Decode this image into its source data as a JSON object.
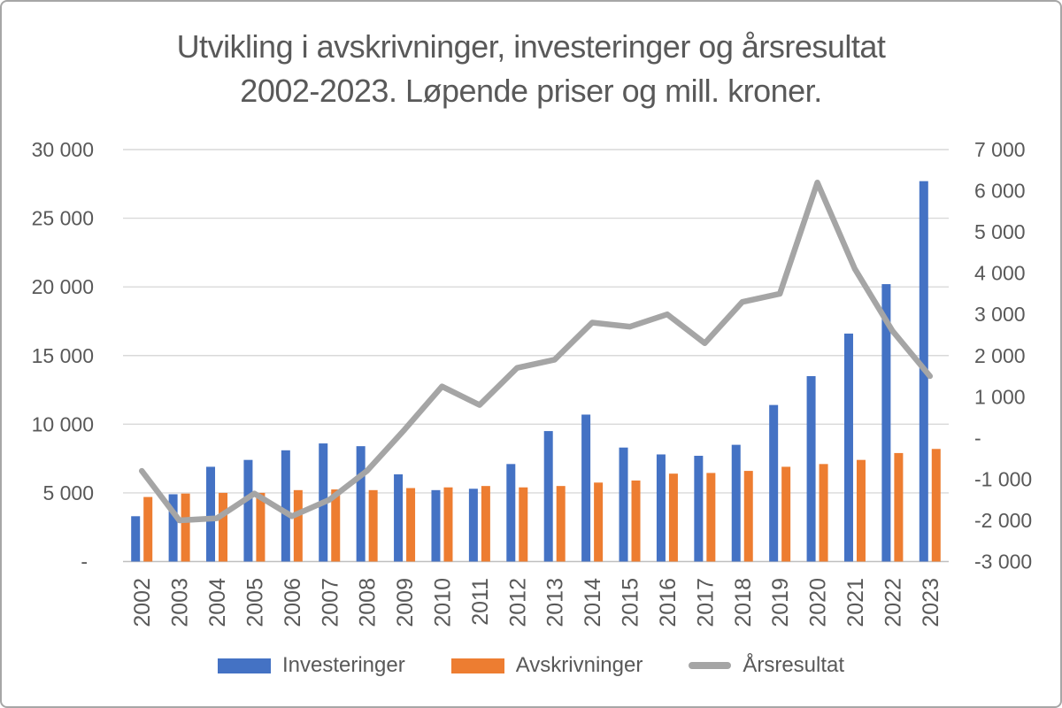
{
  "title_lines": [
    "Utvikling i avskrivninger, investeringer og årsresultat",
    "2002-2023. Løpende priser og mill. kroner."
  ],
  "chart_data": {
    "type": "bar",
    "subtype": "combo-bar-line-dual-axis",
    "title": "Utvikling i avskrivninger, investeringer og årsresultat 2002-2023. Løpende priser og mill. kroner.",
    "grid": true,
    "legend_position": "bottom",
    "categories": [
      "2002",
      "2003",
      "2004",
      "2005",
      "2006",
      "2007",
      "2008",
      "2009",
      "2010",
      "2011",
      "2012",
      "2013",
      "2014",
      "2015",
      "2016",
      "2017",
      "2018",
      "2019",
      "2020",
      "2021",
      "2022",
      "2023"
    ],
    "series": [
      {
        "name": "Investeringer",
        "chart_type": "bar",
        "axis": "left",
        "color": "#4472C4",
        "values": [
          3300,
          4900,
          6900,
          7400,
          8100,
          8600,
          8400,
          6350,
          5200,
          5300,
          7100,
          9500,
          10700,
          8300,
          7800,
          7700,
          8500,
          11400,
          13500,
          16600,
          20200,
          27700
        ]
      },
      {
        "name": "Avskrivninger",
        "chart_type": "bar",
        "axis": "left",
        "color": "#ED7D31",
        "values": [
          4700,
          4950,
          5000,
          5000,
          5200,
          5250,
          5200,
          5350,
          5400,
          5500,
          5400,
          5500,
          5750,
          5900,
          6400,
          6450,
          6600,
          6900,
          7100,
          7400,
          7900,
          8200
        ]
      },
      {
        "name": "Årsresultat",
        "chart_type": "line",
        "axis": "right",
        "color": "#A5A5A5",
        "values": [
          -800,
          -2000,
          -1950,
          -1350,
          -1900,
          -1500,
          -800,
          200,
          1250,
          800,
          1700,
          1900,
          2800,
          2700,
          3000,
          2300,
          3300,
          3500,
          6200,
          4100,
          2600,
          1500
        ]
      }
    ],
    "left_axis": {
      "min": 0,
      "max": 30000,
      "tick_interval": 5000,
      "tick_labels": [
        "-",
        "5 000",
        "10 000",
        "15 000",
        "20 000",
        "25 000",
        "30 000"
      ]
    },
    "right_axis": {
      "min": -3000,
      "max": 7000,
      "tick_interval": 1000,
      "tick_labels": [
        "-3 000",
        "-2 000",
        "-1 000",
        "-",
        "1 000",
        "2 000",
        "3 000",
        "4 000",
        "5 000",
        "6 000",
        "7 000"
      ]
    }
  },
  "colors": {
    "text": "#595959",
    "gridline": "#D9D9D9",
    "axis_line": "#BFBFBF",
    "background": "#FFFFFF",
    "border": "#A6A6A6"
  }
}
